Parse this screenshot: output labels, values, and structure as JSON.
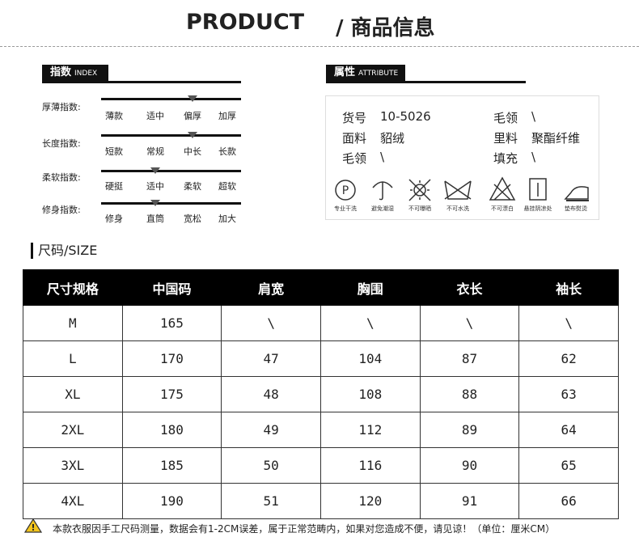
{
  "header": {
    "title_en": "PRODUCT",
    "title_cn": "/ 商品信息"
  },
  "index": {
    "label": "指数",
    "label_en": "INDEX",
    "rows": [
      {
        "name": "厚薄指数:",
        "options": [
          "薄款",
          "适中",
          "偏厚",
          "加厚"
        ],
        "selected": 2
      },
      {
        "name": "长度指数:",
        "options": [
          "短款",
          "常规",
          "中长",
          "长款"
        ],
        "selected": 2
      },
      {
        "name": "柔软指数:",
        "options": [
          "硬挺",
          "适中",
          "柔软",
          "超软"
        ],
        "selected": 1
      },
      {
        "name": "修身指数:",
        "options": [
          "修身",
          "直筒",
          "宽松",
          "加大"
        ],
        "selected": 1
      }
    ]
  },
  "attributes": {
    "label": "属性",
    "label_en": "ATTRIBUTE",
    "rows": [
      [
        [
          "货号",
          "10-5026"
        ],
        [
          "毛领",
          "\\"
        ]
      ],
      [
        [
          "面料",
          "貂绒"
        ],
        [
          "里料",
          "聚酯纤维"
        ]
      ],
      [
        [
          "毛领",
          "\\"
        ],
        [
          "填充",
          "\\"
        ]
      ]
    ],
    "care": [
      "专业干洗",
      "避免潮湿",
      "不可曝晒",
      "不可水洗",
      "不可漂白",
      "悬挂阴凉处",
      "垫布熨烫"
    ]
  },
  "size": {
    "heading": "尺码/SIZE",
    "columns": [
      "尺寸规格",
      "中国码",
      "肩宽",
      "胸围",
      "衣长",
      "袖长"
    ],
    "rows": [
      [
        "M",
        "165",
        "\\",
        "\\",
        "\\",
        "\\"
      ],
      [
        "L",
        "170",
        "47",
        "104",
        "87",
        "62"
      ],
      [
        "XL",
        "175",
        "48",
        "108",
        "88",
        "63"
      ],
      [
        "2XL",
        "180",
        "49",
        "112",
        "89",
        "64"
      ],
      [
        "3XL",
        "185",
        "50",
        "116",
        "90",
        "65"
      ],
      [
        "4XL",
        "190",
        "51",
        "120",
        "91",
        "66"
      ]
    ]
  },
  "note": "本款衣服因手工尺码测量，数据会有1-2CM误差，属于正常范畴内，如果对您造成不便，请见谅！（单位：厘米CM）"
}
